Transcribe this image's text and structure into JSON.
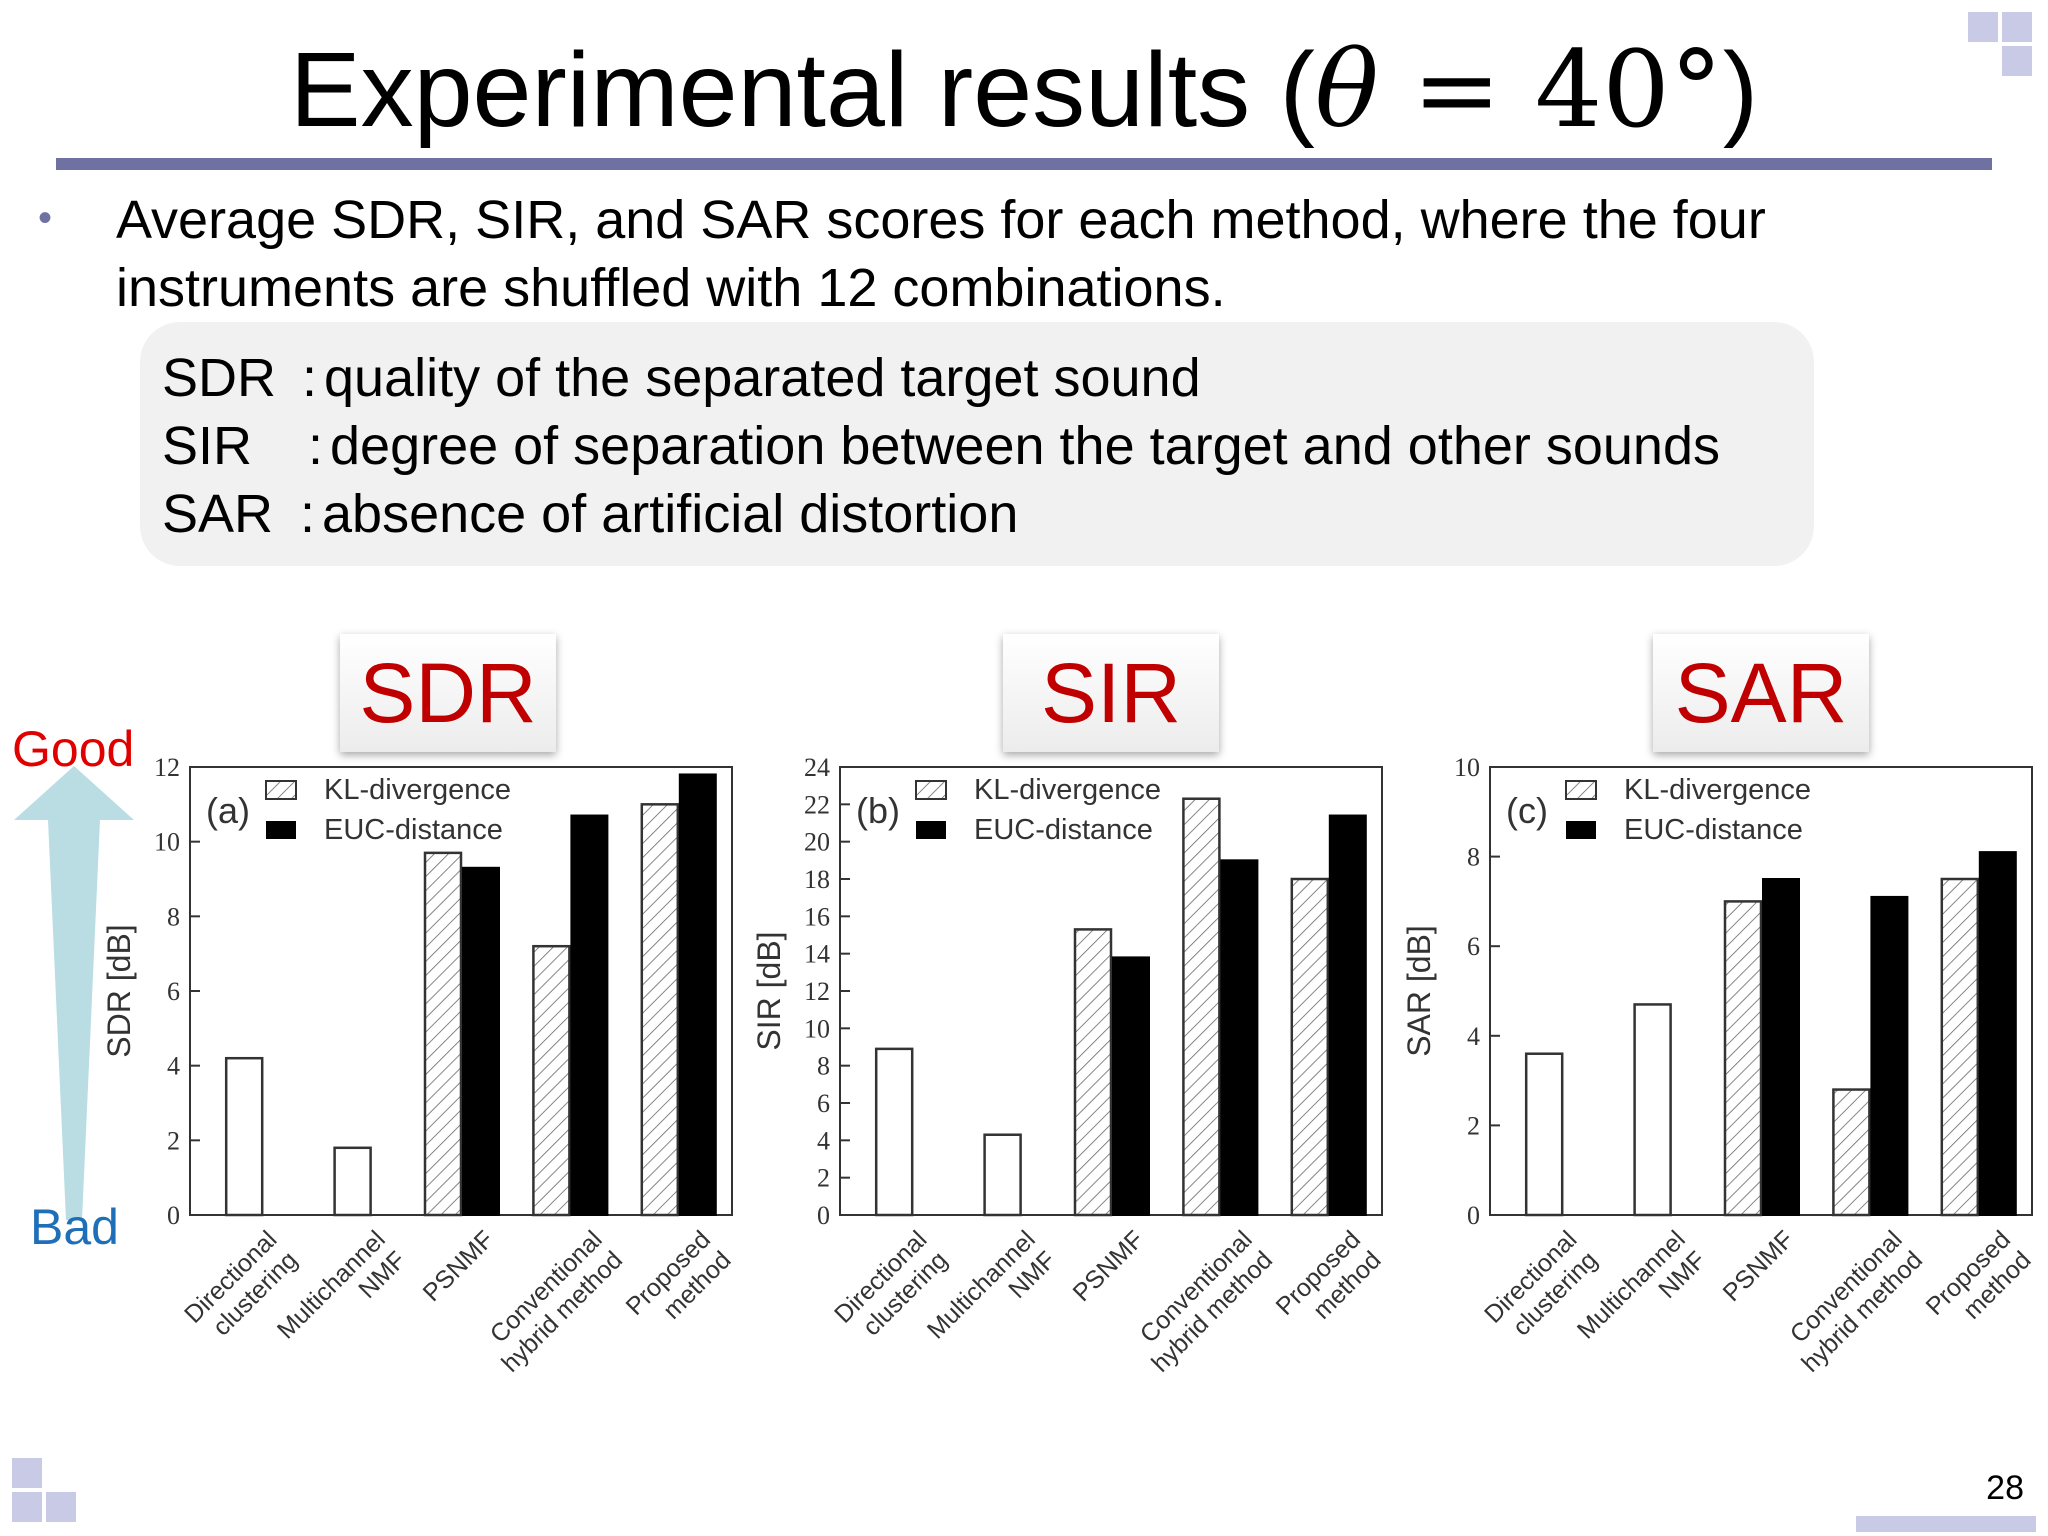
{
  "slide": {
    "title_text": "Experimental results (",
    "title_theta": "θ",
    "title_eq": " = 40°",
    "title_close": ")",
    "bullet": "Average SDR, SIR, and SAR scores for each method, where the four instruments are shuffled with 12 combinations.",
    "definitions": [
      {
        "term": "SDR",
        "colon": ":",
        "desc": "quality of the separated target sound"
      },
      {
        "term": "SIR",
        "colon": ":",
        "desc": "degree of separation between the target and other sounds"
      },
      {
        "term": "SAR",
        "colon": ":",
        "desc": "absence of artificial distortion"
      }
    ],
    "metric_labels": [
      "SDR",
      "SIR",
      "SAR"
    ],
    "good_label": "Good",
    "bad_label": "Bad",
    "page_number": "28",
    "colors": {
      "title_rule": "#6e71a2",
      "metric_text": "#c00000",
      "good": "#e00000",
      "bad": "#1f6fb8",
      "arrow": "#b9dde2",
      "corner": "#c9cbe6"
    }
  },
  "chart_data": [
    {
      "type": "bar",
      "panel": "(a)",
      "ylabel": "SDR [dB]",
      "ylim": [
        0,
        12
      ],
      "yticks": [
        0,
        2,
        4,
        6,
        8,
        10,
        12
      ],
      "categories": [
        [
          "Directional",
          "clustering"
        ],
        [
          "Multichannel",
          "NMF"
        ],
        [
          "PSNMF"
        ],
        [
          "Conventional",
          "hybrid method"
        ],
        [
          "Proposed",
          "method"
        ]
      ],
      "legend": [
        "KL-divergence",
        "EUC-distance"
      ],
      "single_values": [
        4.2,
        1.8
      ],
      "series": [
        {
          "name": "KL-divergence",
          "style": "hatched",
          "values": [
            null,
            null,
            9.7,
            7.2,
            11.0
          ]
        },
        {
          "name": "EUC-distance",
          "style": "solid",
          "values": [
            null,
            null,
            9.3,
            10.7,
            11.8
          ]
        }
      ]
    },
    {
      "type": "bar",
      "panel": "(b)",
      "ylabel": "SIR [dB]",
      "ylim": [
        0,
        24
      ],
      "yticks": [
        0,
        2,
        4,
        6,
        8,
        10,
        12,
        14,
        16,
        18,
        20,
        22,
        24
      ],
      "categories": [
        [
          "Directional",
          "clustering"
        ],
        [
          "Multichannel",
          "NMF"
        ],
        [
          "PSNMF"
        ],
        [
          "Conventional",
          "hybrid method"
        ],
        [
          "Proposed",
          "method"
        ]
      ],
      "legend": [
        "KL-divergence",
        "EUC-distance"
      ],
      "single_values": [
        8.9,
        4.3
      ],
      "series": [
        {
          "name": "KL-divergence",
          "style": "hatched",
          "values": [
            null,
            null,
            15.3,
            22.3,
            18.0
          ]
        },
        {
          "name": "EUC-distance",
          "style": "solid",
          "values": [
            null,
            null,
            13.8,
            19.0,
            21.4
          ]
        }
      ]
    },
    {
      "type": "bar",
      "panel": "(c)",
      "ylabel": "SAR [dB]",
      "ylim": [
        0,
        10
      ],
      "yticks": [
        0,
        2,
        4,
        6,
        8,
        10
      ],
      "categories": [
        [
          "Directional",
          "clustering"
        ],
        [
          "Multichannel",
          "NMF"
        ],
        [
          "PSNMF"
        ],
        [
          "Conventional",
          "hybrid method"
        ],
        [
          "Proposed",
          "method"
        ]
      ],
      "legend": [
        "KL-divergence",
        "EUC-distance"
      ],
      "single_values": [
        3.6,
        4.7
      ],
      "series": [
        {
          "name": "KL-divergence",
          "style": "hatched",
          "values": [
            null,
            null,
            7.0,
            2.8,
            7.5
          ]
        },
        {
          "name": "EUC-distance",
          "style": "solid",
          "values": [
            null,
            null,
            7.5,
            7.1,
            8.1
          ]
        }
      ]
    }
  ]
}
